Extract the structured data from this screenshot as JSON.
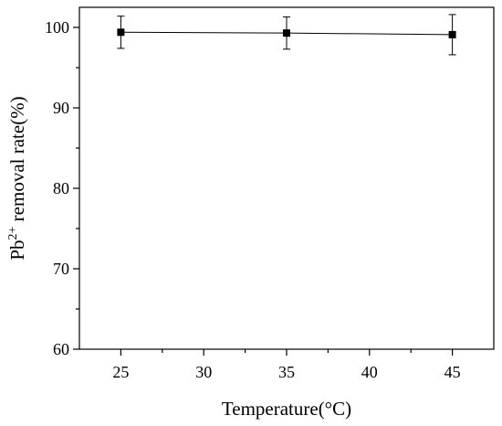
{
  "chart_data": {
    "type": "line",
    "title": "",
    "xlabel": "Temperature(°C)",
    "ylabel": {
      "prefix": "Pb",
      "superscript": "2+",
      "suffix": " removal rate(%)"
    },
    "xlim": [
      22.5,
      47.5
    ],
    "ylim": [
      60,
      102.5
    ],
    "x_ticks": [
      25,
      30,
      35,
      40,
      45
    ],
    "y_ticks": [
      60,
      70,
      80,
      90,
      100
    ],
    "x_minor_ticks": [
      27.5,
      32.5,
      37.5,
      42.5
    ],
    "y_minor_ticks": [
      65,
      75,
      85,
      95
    ],
    "grid": false,
    "legend": "none",
    "series": [
      {
        "x": [
          25,
          35,
          45
        ],
        "y": [
          99.4,
          99.3,
          99.1
        ],
        "error": [
          2.0,
          2.0,
          2.5
        ],
        "marker": "square",
        "color": "#000000"
      }
    ]
  }
}
